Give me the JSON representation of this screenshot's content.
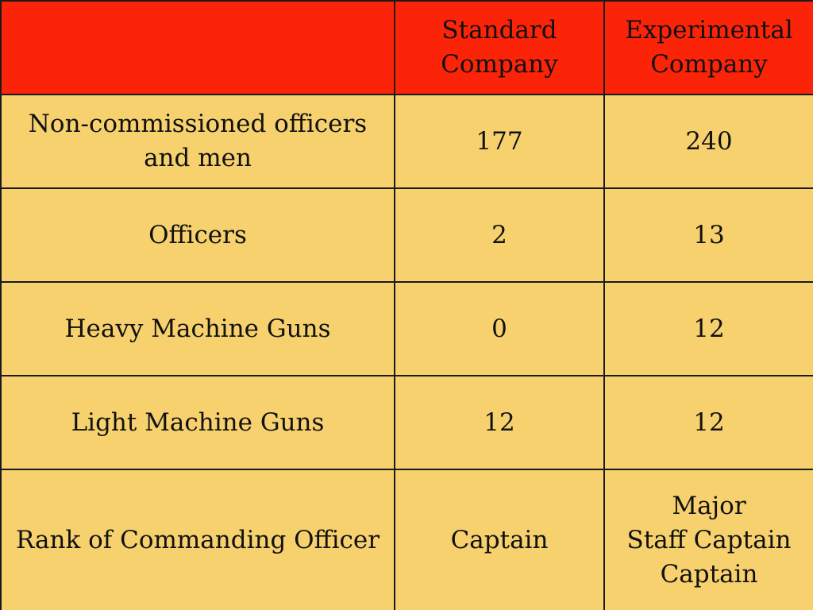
{
  "header": {
    "corner": "",
    "col_standard": "Standard\nCompany",
    "col_experimental": "Experimental\nCompany"
  },
  "rows": [
    {
      "label": "Non-commissioned officers\nand men",
      "standard": "177",
      "experimental": "240"
    },
    {
      "label": "Officers",
      "standard": "2",
      "experimental": "13"
    },
    {
      "label": "Heavy Machine Guns",
      "standard": "0",
      "experimental": "12"
    },
    {
      "label": "Light Machine Guns",
      "standard": "12",
      "experimental": "12"
    },
    {
      "label": "Rank of Commanding Officer",
      "standard": "Captain",
      "experimental": "Major\nStaff Captain\nCaptain"
    }
  ],
  "colors": {
    "header_bg": "#fb2408",
    "body_bg": "#f7d16e",
    "border": "#1a1a1a"
  }
}
